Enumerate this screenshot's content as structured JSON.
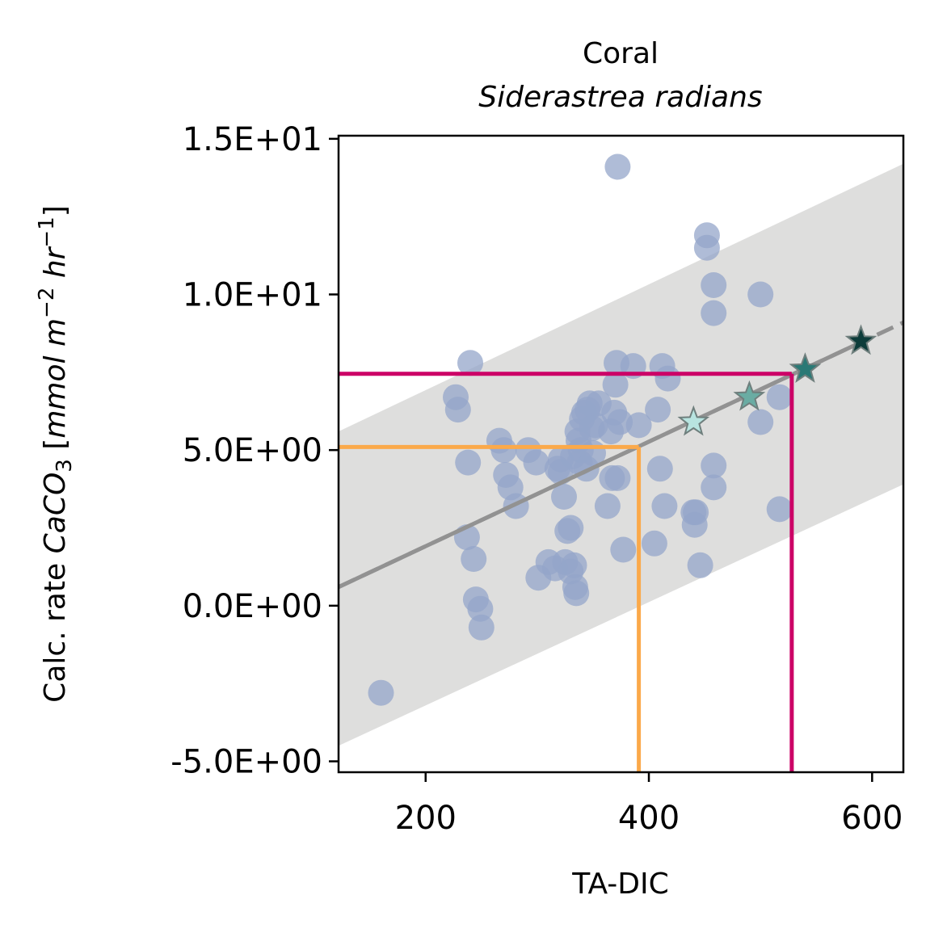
{
  "chart_data": {
    "type": "scatter",
    "title": "Coral",
    "subtitle": "Siderastrea radians",
    "xlabel": "TA-DIC",
    "ylabel": "Calc. rate CaCO3 [mmol m-2 hr-1]",
    "ylabel_parts": {
      "prefix": "Calc. rate ",
      "chem": "CaCO",
      "chem_sub": "3",
      "bracket_open": " [",
      "unit1": "mmol m",
      "unit1_sup": "−2",
      "unit2": " hr",
      "unit2_sup": "−1",
      "bracket_close": "]"
    },
    "xlim": [
      122,
      628
    ],
    "ylim": [
      -5.35,
      15.1
    ],
    "xticks": [
      {
        "value": 200,
        "label": "200"
      },
      {
        "value": 400,
        "label": "400"
      },
      {
        "value": 600,
        "label": "600"
      }
    ],
    "yticks": [
      {
        "value": -5,
        "label": "-5.0E+00"
      },
      {
        "value": 0,
        "label": "0.0E+00"
      },
      {
        "value": 5,
        "label": "5.0E+00"
      },
      {
        "value": 10,
        "label": "1.0E+01"
      },
      {
        "value": 15,
        "label": "1.5E+01"
      }
    ],
    "colors": {
      "points": "#94a6c9",
      "fit": "#929292",
      "band": "#dededd",
      "orange": "#fba94a",
      "magenta": "#cc0066"
    },
    "points": [
      [
        160,
        -2.8
      ],
      [
        227,
        6.7
      ],
      [
        229,
        6.3
      ],
      [
        238,
        4.6
      ],
      [
        237,
        2.2
      ],
      [
        240,
        7.8
      ],
      [
        243,
        1.5
      ],
      [
        245,
        0.2
      ],
      [
        249,
        -0.1
      ],
      [
        250,
        -0.7
      ],
      [
        266,
        5.3
      ],
      [
        270,
        5.0
      ],
      [
        272,
        4.2
      ],
      [
        276,
        3.8
      ],
      [
        281,
        3.2
      ],
      [
        292,
        5.0
      ],
      [
        299,
        4.6
      ],
      [
        301,
        0.9
      ],
      [
        310,
        1.4
      ],
      [
        316,
        1.2
      ],
      [
        318,
        4.4
      ],
      [
        321,
        4.7
      ],
      [
        321,
        4.3
      ],
      [
        324,
        3.5
      ],
      [
        325,
        1.4
      ],
      [
        327,
        2.4
      ],
      [
        330,
        2.5
      ],
      [
        330,
        1.1
      ],
      [
        332,
        4.8
      ],
      [
        333,
        1.3
      ],
      [
        334,
        0.6
      ],
      [
        335,
        0.4
      ],
      [
        336,
        5.6
      ],
      [
        337,
        5.3
      ],
      [
        338,
        4.6
      ],
      [
        339,
        5.0
      ],
      [
        340,
        6.0
      ],
      [
        342,
        6.2
      ],
      [
        344,
        4.4
      ],
      [
        345,
        6.3
      ],
      [
        347,
        6.5
      ],
      [
        349,
        5.7
      ],
      [
        350,
        4.9
      ],
      [
        352,
        5.8
      ],
      [
        355,
        6.5
      ],
      [
        363,
        3.2
      ],
      [
        366,
        5.6
      ],
      [
        367,
        4.1
      ],
      [
        369,
        6.2
      ],
      [
        370,
        7.1
      ],
      [
        371,
        7.8
      ],
      [
        372,
        4.1
      ],
      [
        372,
        14.1
      ],
      [
        374,
        5.9
      ],
      [
        377,
        1.8
      ],
      [
        386,
        7.7
      ],
      [
        391,
        5.8
      ],
      [
        405,
        2.0
      ],
      [
        408,
        6.3
      ],
      [
        410,
        4.4
      ],
      [
        412,
        7.7
      ],
      [
        414,
        3.2
      ],
      [
        417,
        7.3
      ],
      [
        440,
        3.0
      ],
      [
        441,
        2.6
      ],
      [
        442,
        3.0
      ],
      [
        446,
        1.3
      ],
      [
        452,
        11.9
      ],
      [
        452,
        11.5
      ],
      [
        458,
        10.3
      ],
      [
        458,
        9.4
      ],
      [
        458,
        4.5
      ],
      [
        458,
        3.8
      ],
      [
        500,
        10.0
      ],
      [
        500,
        5.9
      ],
      [
        517,
        6.7
      ],
      [
        517,
        3.1
      ]
    ],
    "fit": {
      "label": "linear regression",
      "x_solid": [
        122,
        585
      ],
      "x_dashed": [
        122,
        628
      ],
      "y_at": {
        "122": 0.6,
        "628": 9.1
      },
      "band": {
        "lower": {
          "122": -4.5,
          "628": 3.9
        },
        "upper": {
          "122": 5.6,
          "628": 14.2
        }
      }
    },
    "stars": [
      {
        "x": 440,
        "y": 5.9,
        "color": "#b8e4e0"
      },
      {
        "x": 490,
        "y": 6.7,
        "color": "#6aaca3"
      },
      {
        "x": 540,
        "y": 7.6,
        "color": "#2a7975"
      },
      {
        "x": 590,
        "y": 8.5,
        "color": "#0c3c3a"
      }
    ],
    "guides": [
      {
        "x": 391,
        "y": 5.1,
        "color": "#fba94a"
      },
      {
        "x": 528,
        "y": 7.45,
        "color": "#cc0066"
      }
    ]
  }
}
